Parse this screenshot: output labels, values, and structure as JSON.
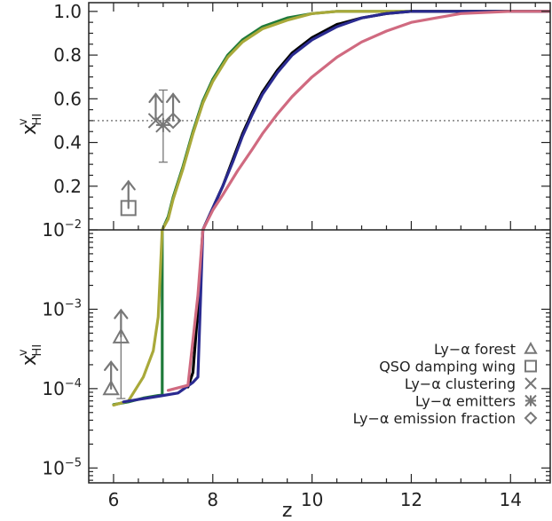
{
  "chart_data": [
    {
      "type": "line",
      "panel": "top",
      "y_scale": "linear",
      "xlim": [
        5.5,
        14.8
      ],
      "ylim": [
        0.0,
        1.04
      ],
      "yticks": [
        0.2,
        0.4,
        0.6,
        0.8,
        1.0
      ],
      "ytick_labels": [
        "0.2",
        "0.4",
        "0.6",
        "0.8",
        "1.0"
      ],
      "ylabel": {
        "base": "x",
        "sup": "v",
        "sub": "HI"
      },
      "reference_line": {
        "y": 0.5,
        "style": "dotted",
        "color": "#555555"
      },
      "series": [
        {
          "color": "#1f7a3a",
          "x": [
            6.98,
            7.1,
            7.2,
            7.4,
            7.6,
            7.8,
            8.0,
            8.3,
            8.6,
            9.0,
            9.5,
            10.0,
            10.5,
            11.0,
            12.0,
            13.0,
            14.8
          ],
          "y": [
            0.0,
            0.06,
            0.15,
            0.29,
            0.45,
            0.59,
            0.69,
            0.8,
            0.87,
            0.93,
            0.97,
            0.99,
            1.0,
            1.0,
            1.0,
            1.0,
            1.0
          ]
        },
        {
          "color": "#a9a93a",
          "x": [
            6.98,
            7.1,
            7.2,
            7.4,
            7.6,
            7.8,
            8.0,
            8.3,
            8.6,
            9.0,
            9.5,
            10.0,
            10.5,
            11.0,
            12.0,
            13.0,
            14.8
          ],
          "y": [
            0.0,
            0.05,
            0.14,
            0.28,
            0.44,
            0.58,
            0.68,
            0.79,
            0.86,
            0.92,
            0.96,
            0.99,
            1.0,
            1.0,
            1.0,
            1.0,
            1.0
          ]
        },
        {
          "color": "#000000",
          "x": [
            7.8,
            8.0,
            8.2,
            8.4,
            8.6,
            8.8,
            9.0,
            9.3,
            9.6,
            10.0,
            10.5,
            11.0,
            11.5,
            12.0,
            13.0,
            14.8
          ],
          "y": [
            0.0,
            0.1,
            0.2,
            0.32,
            0.44,
            0.54,
            0.63,
            0.73,
            0.81,
            0.88,
            0.94,
            0.97,
            0.99,
            1.0,
            1.0,
            1.0
          ]
        },
        {
          "color": "#2a2a90",
          "x": [
            7.8,
            8.0,
            8.2,
            8.4,
            8.6,
            8.8,
            9.0,
            9.3,
            9.6,
            10.0,
            10.5,
            11.0,
            11.5,
            12.0,
            13.0,
            14.8
          ],
          "y": [
            0.0,
            0.1,
            0.2,
            0.31,
            0.43,
            0.53,
            0.62,
            0.72,
            0.8,
            0.87,
            0.93,
            0.97,
            0.99,
            1.0,
            1.0,
            1.0
          ]
        },
        {
          "color": "#d06a80",
          "x": [
            7.8,
            8.0,
            8.2,
            8.5,
            8.8,
            9.0,
            9.3,
            9.6,
            10.0,
            10.5,
            11.0,
            11.5,
            12.0,
            12.5,
            13.0,
            14.0,
            14.8
          ],
          "y": [
            0.0,
            0.09,
            0.16,
            0.27,
            0.37,
            0.44,
            0.53,
            0.61,
            0.7,
            0.79,
            0.86,
            0.91,
            0.95,
            0.97,
            0.99,
            1.0,
            1.0
          ]
        }
      ],
      "observations": [
        {
          "marker": "square",
          "x": 6.3,
          "y": 0.1,
          "lower_limit": true
        },
        {
          "marker": "x",
          "x": 6.85,
          "y": 0.5,
          "lower_limit": true
        },
        {
          "marker": "asterisk",
          "x": 7.0,
          "y": 0.48,
          "err": [
            0.31,
            0.64
          ]
        },
        {
          "marker": "diamond",
          "x": 7.2,
          "y": 0.5,
          "lower_limit": true
        }
      ]
    },
    {
      "type": "line",
      "panel": "bottom",
      "y_scale": "log",
      "xlim": [
        5.5,
        14.8
      ],
      "ylim": [
        6.5e-06,
        0.01
      ],
      "xlabel": "z",
      "xticks": [
        6,
        8,
        10,
        12,
        14
      ],
      "xtick_labels": [
        "6",
        "8",
        "10",
        "12",
        "14"
      ],
      "yticks": [
        1e-05,
        0.0001,
        0.001,
        0.01
      ],
      "ytick_labels": [
        {
          "base": "10",
          "exp": "−5"
        },
        {
          "base": "10",
          "exp": "−4"
        },
        {
          "base": "10",
          "exp": "−3"
        },
        {
          "base": "10",
          "exp": "−2"
        }
      ],
      "ylabel": {
        "base": "x",
        "sup": "v",
        "sub": "HI"
      },
      "series": [
        {
          "color": "#1f7a3a",
          "x": [
            6.0,
            6.3,
            6.6,
            6.9,
            6.98,
            6.98
          ],
          "y": [
            6.3e-05,
            6.8e-05,
            7.6e-05,
            8.2e-05,
            8.3e-05,
            0.01
          ]
        },
        {
          "color": "#a9a93a",
          "x": [
            6.0,
            6.3,
            6.6,
            6.8,
            6.9,
            6.98
          ],
          "y": [
            6.2e-05,
            7e-05,
            0.00014,
            0.0003,
            0.0008,
            0.01
          ]
        },
        {
          "color": "#000000",
          "x": [
            7.5,
            7.6,
            7.7,
            7.8
          ],
          "y": [
            0.000105,
            0.00016,
            0.001,
            0.01
          ]
        },
        {
          "color": "#2a2a90",
          "x": [
            6.2,
            6.5,
            6.9,
            7.3,
            7.6,
            7.7,
            7.8
          ],
          "y": [
            6.8e-05,
            7.3e-05,
            8e-05,
            8.8e-05,
            0.00012,
            0.00014,
            0.01
          ]
        },
        {
          "color": "#d06a80",
          "x": [
            7.1,
            7.5,
            7.7,
            7.8
          ],
          "y": [
            9.5e-05,
            0.00011,
            0.0015,
            0.01
          ]
        }
      ],
      "observations": [
        {
          "marker": "triangle",
          "x": 5.95,
          "y": 0.0001,
          "lower_limit": true
        },
        {
          "marker": "triangle",
          "x": 6.15,
          "y": 0.00045,
          "lower_limit": true,
          "err_low": 7.5e-05
        }
      ],
      "legend": {
        "placement": "bottom-right",
        "entries": [
          {
            "label": "Ly−α forest",
            "marker": "triangle"
          },
          {
            "label": "QSO damping wing",
            "marker": "square"
          },
          {
            "label": "Ly−α clustering",
            "marker": "x"
          },
          {
            "label": "Ly−α emitters",
            "marker": "asterisk"
          },
          {
            "label": "Ly−α emission fraction",
            "marker": "diamond"
          }
        ]
      }
    }
  ]
}
